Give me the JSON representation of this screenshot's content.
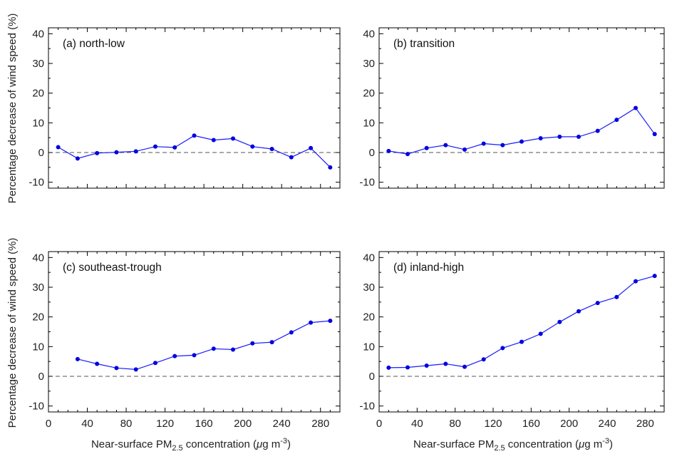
{
  "chart_data": [
    {
      "type": "line",
      "panel_label": "(a) north-low",
      "x": [
        10,
        30,
        50,
        70,
        90,
        110,
        130,
        150,
        170,
        190,
        210,
        230,
        250,
        270,
        290
      ],
      "series": [
        {
          "values": [
            1.8,
            -2.0,
            -0.2,
            0.1,
            0.4,
            2.0,
            1.7,
            5.7,
            4.2,
            4.7,
            2.0,
            1.2,
            -1.6,
            1.5,
            -5.0
          ]
        }
      ],
      "xlim": [
        0,
        300
      ],
      "ylim": [
        -12,
        42
      ],
      "yticks": [
        -10,
        0,
        10,
        20,
        30,
        40
      ],
      "zero_line": 0,
      "grid": false
    },
    {
      "type": "line",
      "panel_label": "(b) transition",
      "x": [
        10,
        30,
        50,
        70,
        90,
        110,
        130,
        150,
        170,
        190,
        210,
        230,
        250,
        270,
        290
      ],
      "series": [
        {
          "values": [
            0.5,
            -0.5,
            1.5,
            2.5,
            1.0,
            3.0,
            2.5,
            3.7,
            4.8,
            5.3,
            5.3,
            7.3,
            11.0,
            15.0,
            6.2
          ]
        }
      ],
      "xlim": [
        0,
        300
      ],
      "ylim": [
        -12,
        42
      ],
      "yticks": [
        -10,
        0,
        10,
        20,
        30,
        40
      ],
      "zero_line": 0,
      "grid": false
    },
    {
      "type": "line",
      "panel_label": "(c) southeast-trough",
      "x": [
        30,
        50,
        70,
        90,
        110,
        130,
        150,
        170,
        190,
        210,
        230,
        250,
        270,
        290
      ],
      "series": [
        {
          "values": [
            5.8,
            4.2,
            2.8,
            2.3,
            4.5,
            6.8,
            7.1,
            9.3,
            9.0,
            11.1,
            11.5,
            14.8,
            18.1,
            18.7
          ]
        }
      ],
      "xlim": [
        0,
        300
      ],
      "ylim": [
        -12,
        42
      ],
      "yticks": [
        -10,
        0,
        10,
        20,
        30,
        40
      ],
      "zero_line": 0,
      "grid": false
    },
    {
      "type": "line",
      "panel_label": "(d) inland-high",
      "x": [
        10,
        30,
        50,
        70,
        90,
        110,
        130,
        150,
        170,
        190,
        210,
        230,
        250,
        270,
        290
      ],
      "series": [
        {
          "values": [
            2.9,
            3.0,
            3.6,
            4.2,
            3.2,
            5.7,
            9.5,
            11.6,
            14.3,
            18.3,
            21.9,
            24.7,
            26.7,
            32.0,
            33.8
          ]
        }
      ],
      "xlim": [
        0,
        300
      ],
      "ylim": [
        -12,
        42
      ],
      "yticks": [
        -10,
        0,
        10,
        20,
        30,
        40
      ],
      "zero_line": 0,
      "grid": false
    }
  ],
  "axes": {
    "ylabel": "Percentage decrease of wind speed (%)",
    "xlabel_prefix": "Near-surface PM",
    "xlabel_sub": "2.5",
    "xlabel_mid": " concentration (",
    "xlabel_unit_mu": "μ",
    "xlabel_unit_g": "g m",
    "xlabel_unit_sup": "-3",
    "xlabel_suffix": ")",
    "xticks": [
      0,
      40,
      80,
      120,
      160,
      200,
      240,
      280
    ],
    "xtick_labels": [
      "0",
      "40",
      "80",
      "120",
      "160",
      "200",
      "240",
      "280"
    ]
  },
  "colors": {
    "series": "#1a1aff",
    "marker": "#0000e0",
    "axis": "#000000",
    "zero_line": "#555555"
  }
}
